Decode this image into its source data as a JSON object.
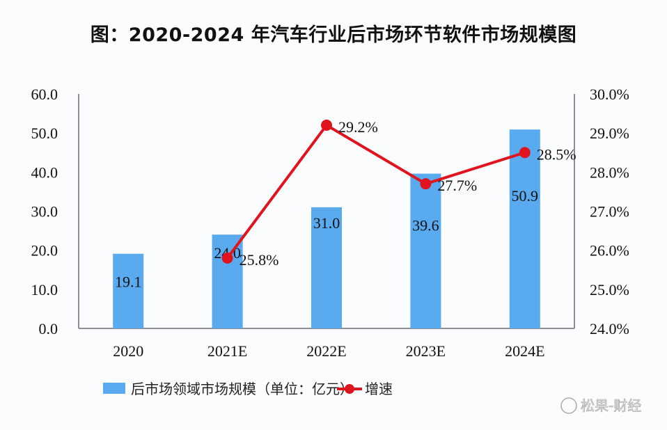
{
  "chart_data": {
    "type": "bar",
    "title": "图：2020-2024 年汽车行业后市场环节软件市场规模图",
    "categories": [
      "2020",
      "2021E",
      "2022E",
      "2023E",
      "2024E"
    ],
    "series": [
      {
        "name": "后市场领域市场规模（单位：亿元）",
        "type": "bar",
        "axis": "left",
        "color": "#5aaaf0",
        "values": [
          19.1,
          24.0,
          31.0,
          39.6,
          50.9
        ],
        "labels": [
          "19.1",
          "24.0",
          "31.0",
          "39.6",
          "50.9"
        ]
      },
      {
        "name": "增速",
        "type": "line",
        "axis": "right",
        "color": "#e0141e",
        "values": [
          null,
          25.8,
          29.2,
          27.7,
          28.5
        ],
        "labels": [
          null,
          "25.8%",
          "29.2%",
          "27.7%",
          "28.5%"
        ]
      }
    ],
    "y_left": {
      "ylim": [
        0,
        60
      ],
      "ticks": [
        "0.0",
        "10.0",
        "20.0",
        "30.0",
        "40.0",
        "50.0",
        "60.0"
      ]
    },
    "y_right": {
      "ylim": [
        24,
        30
      ],
      "ticks": [
        "24.0%",
        "25.0%",
        "26.0%",
        "27.0%",
        "28.0%",
        "29.0%",
        "30.0%"
      ]
    },
    "grid": false,
    "legend": "bottom"
  },
  "watermark": "松果-财经"
}
